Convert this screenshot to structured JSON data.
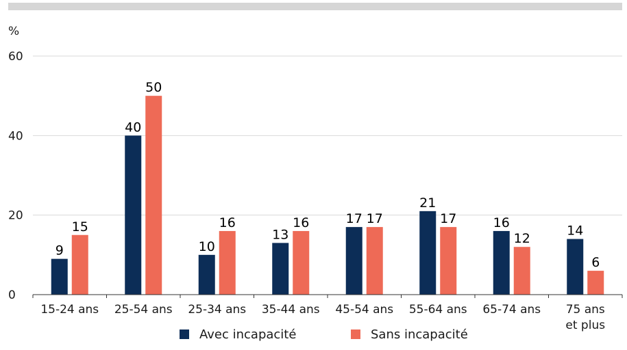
{
  "chart_data": {
    "type": "bar",
    "ylabel": "%",
    "ylim": [
      0,
      60
    ],
    "yticks": [
      0,
      20,
      40,
      60
    ],
    "grid": true,
    "legend_position": "bottom",
    "categories": [
      "15-24 ans",
      "25-54 ans",
      "25-34 ans",
      "35-44 ans",
      "45-54 ans",
      "55-64 ans",
      "65-74 ans",
      "75 ans\net plus"
    ],
    "series": [
      {
        "name": "Avec incapacité",
        "color": "#0c2d57",
        "values": [
          9,
          40,
          10,
          13,
          17,
          21,
          16,
          14
        ]
      },
      {
        "name": "Sans incapacité",
        "color": "#ee6a56",
        "values": [
          15,
          50,
          16,
          16,
          17,
          17,
          12,
          6
        ]
      }
    ]
  }
}
